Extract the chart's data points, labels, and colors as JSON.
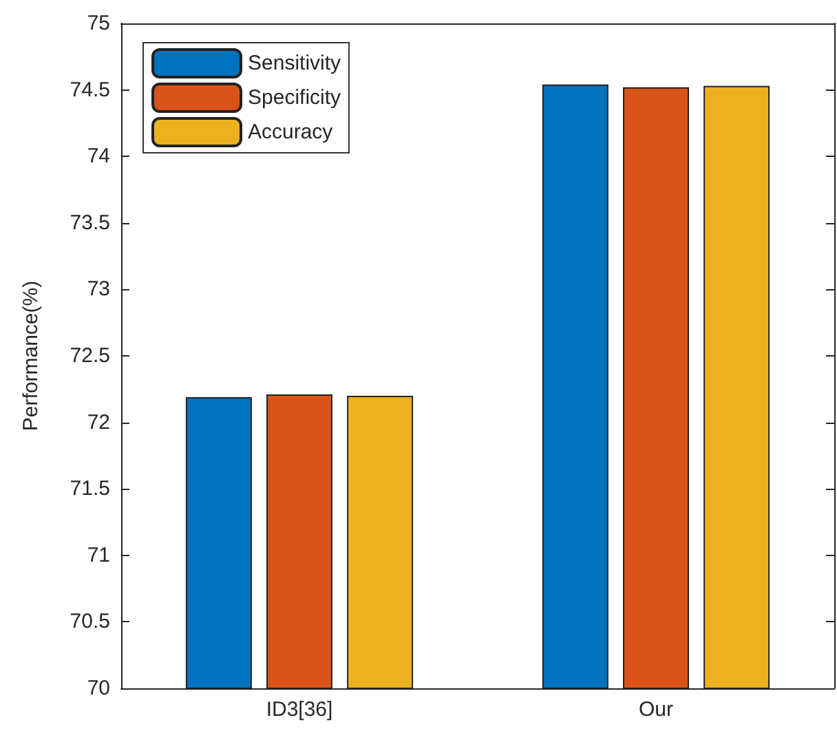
{
  "chart_data": {
    "type": "bar",
    "ylabel": "Performance(%)",
    "categories": [
      "ID3[36]",
      "Our"
    ],
    "series": [
      {
        "name": "Sensitivity",
        "color": "#0072bd",
        "values": [
          72.19,
          74.54
        ]
      },
      {
        "name": "Specificity",
        "color": "#d95319",
        "values": [
          72.21,
          74.52
        ]
      },
      {
        "name": "Accuracy",
        "color": "#edb120",
        "values": [
          72.2,
          74.53
        ]
      }
    ],
    "ylim": [
      70,
      75
    ],
    "yticks": [
      70,
      70.5,
      71,
      71.5,
      72,
      72.5,
      73,
      73.5,
      74,
      74.5,
      75
    ],
    "grid": false,
    "legend": "top left"
  }
}
